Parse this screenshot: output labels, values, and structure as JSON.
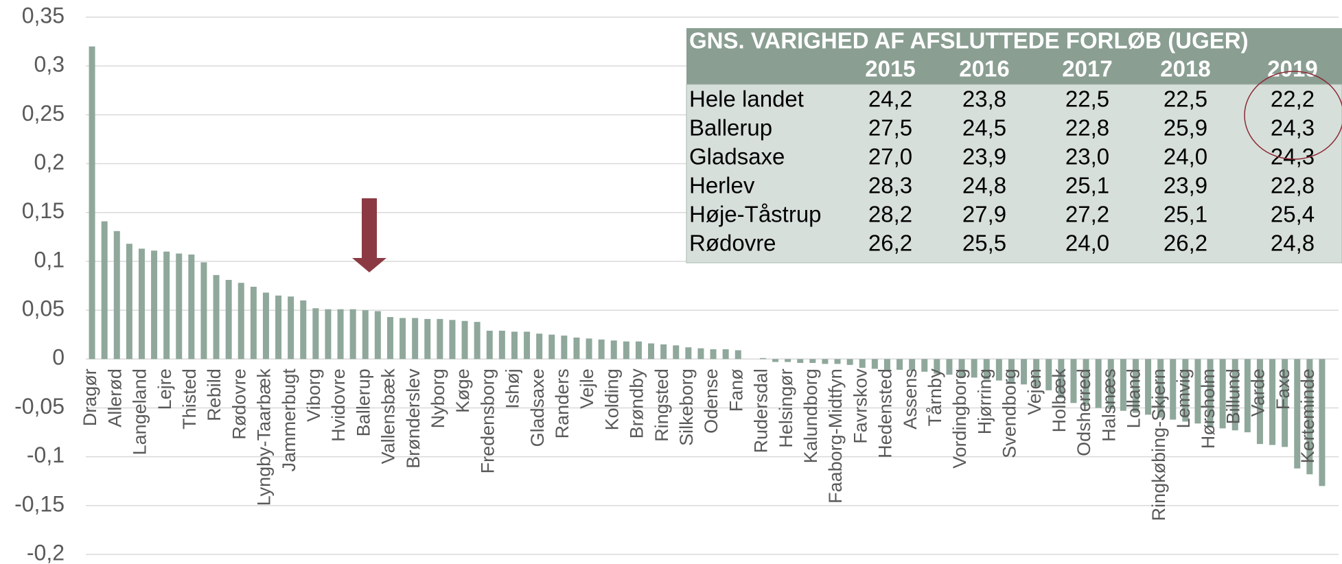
{
  "chart_data": {
    "type": "bar",
    "categories": [
      "Dragør",
      null,
      "Allerød",
      null,
      "Langeland",
      null,
      "Lejre",
      null,
      "Thisted",
      null,
      "Rebild",
      null,
      "Rødovre",
      null,
      "Lyngby-Taarbæk",
      null,
      "Jammerbugt",
      null,
      "Viborg",
      null,
      "Hvidovre",
      null,
      "Ballerup",
      null,
      "Vallensbæk",
      null,
      "Brønderslev",
      null,
      "Nyborg",
      null,
      "Køge",
      null,
      "Fredensborg",
      null,
      "Ishøj",
      null,
      "Gladsaxe",
      null,
      "Randers",
      null,
      "Vejle",
      null,
      "Kolding",
      null,
      "Brøndby",
      null,
      "Ringsted",
      null,
      "Silkeborg",
      null,
      "Odense",
      null,
      "Fanø",
      null,
      "Rudersdal",
      null,
      "Helsingør",
      null,
      "Kalundborg",
      null,
      "Faaborg-Midtfyn",
      null,
      "Favrskov",
      null,
      "Hedensted",
      null,
      "Assens",
      null,
      "Tårnby",
      null,
      "Vordingborg",
      null,
      "Hjørring",
      null,
      "Svendborg",
      null,
      "Vejen",
      null,
      "Holbæk",
      null,
      "Odsherred",
      null,
      "Halsnæs",
      null,
      "Lolland",
      null,
      "Ringkøbing-Skjern",
      null,
      "Lemvig",
      null,
      "Hørsholm",
      null,
      "Billund",
      null,
      "Varde",
      null,
      "Faxe",
      null,
      "Kerteminde",
      null
    ],
    "values": [
      0.32,
      0.141,
      0.131,
      0.118,
      0.113,
      0.111,
      0.11,
      0.108,
      0.107,
      0.099,
      0.086,
      0.081,
      0.078,
      0.074,
      0.068,
      0.065,
      0.064,
      0.06,
      0.052,
      0.051,
      0.051,
      0.051,
      0.05,
      0.049,
      0.043,
      0.042,
      0.042,
      0.041,
      0.041,
      0.04,
      0.039,
      0.038,
      0.029,
      0.029,
      0.028,
      0.028,
      0.026,
      0.025,
      0.024,
      0.022,
      0.021,
      0.02,
      0.019,
      0.018,
      0.018,
      0.016,
      0.015,
      0.014,
      0.012,
      0.011,
      0.01,
      0.01,
      0.009,
      0.0,
      0.001,
      -0.003,
      -0.003,
      -0.004,
      -0.004,
      -0.005,
      -0.005,
      -0.006,
      -0.009,
      -0.01,
      -0.011,
      -0.011,
      -0.012,
      -0.013,
      -0.015,
      -0.016,
      -0.018,
      -0.019,
      -0.021,
      -0.022,
      -0.024,
      -0.026,
      -0.028,
      -0.032,
      -0.04,
      -0.045,
      -0.048,
      -0.05,
      -0.051,
      -0.053,
      -0.055,
      -0.057,
      -0.06,
      -0.062,
      -0.064,
      -0.066,
      -0.07,
      -0.071,
      -0.073,
      -0.075,
      -0.087,
      -0.088,
      -0.09,
      -0.112,
      -0.118,
      -0.13
    ],
    "color": "#8fa89b",
    "ylim": [
      -0.2,
      0.35
    ],
    "yticks": [
      {
        "value": -0.2,
        "label": "-0,2"
      },
      {
        "value": -0.15,
        "label": "-0,15"
      },
      {
        "value": -0.1,
        "label": "-0,1"
      },
      {
        "value": -0.05,
        "label": "-0,05"
      },
      0,
      {
        "value": 0.05,
        "label": "0,05"
      },
      {
        "value": 0.1,
        "label": "0,1"
      },
      {
        "value": 0.15,
        "label": "0,15"
      },
      {
        "value": 0.2,
        "label": "0,2"
      },
      {
        "value": 0.25,
        "label": "0,25"
      },
      {
        "value": 0.3,
        "label": "0,3"
      },
      {
        "value": 0.35,
        "label": "0,35"
      }
    ],
    "grid": true
  },
  "table": {
    "title": "GNS. VARIGHED AF AFSLUTTEDE FORLØB (UGER)",
    "columns": [
      "2015",
      "2016",
      "2017",
      "2018",
      "2019"
    ],
    "rows": [
      {
        "label": "Hele landet",
        "values": [
          "24,2",
          "23,8",
          "22,5",
          "22,5",
          "22,2"
        ]
      },
      {
        "label": "Ballerup",
        "values": [
          "27,5",
          "24,5",
          "22,8",
          "25,9",
          "24,3"
        ]
      },
      {
        "label": "Gladsaxe",
        "values": [
          "27,0",
          "23,9",
          "23,0",
          "24,0",
          "24,3"
        ]
      },
      {
        "label": "Herlev",
        "values": [
          "28,3",
          "24,8",
          "25,1",
          "23,9",
          "22,8"
        ]
      },
      {
        "label": "Høje-Tåstrup",
        "values": [
          "28,2",
          "27,9",
          "27,2",
          "25,1",
          "25,4"
        ]
      },
      {
        "label": "Rødovre",
        "values": [
          "26,2",
          "25,5",
          "24,0",
          "26,2",
          "24,8"
        ]
      }
    ]
  }
}
